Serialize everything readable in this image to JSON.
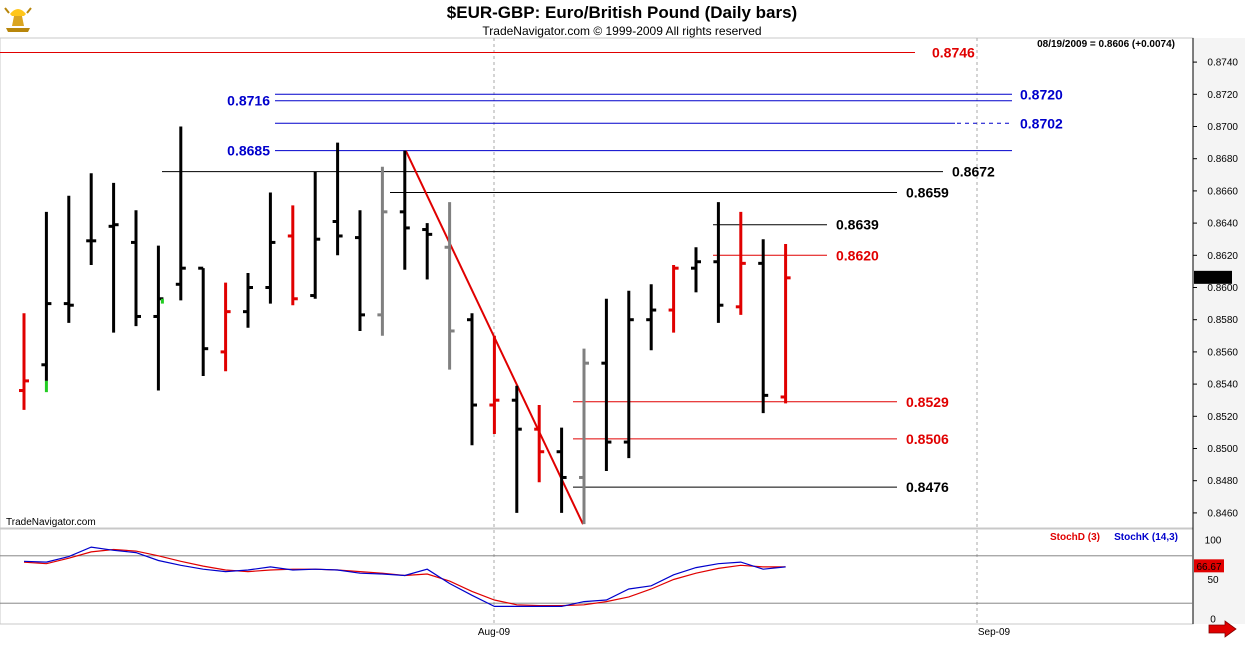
{
  "chart_title": "$EUR-GBP:  Euro/British Pound  (Daily bars)",
  "chart_subtitle": "TradeNavigator.com © 1999-2009 All rights reserved",
  "watermark": "TradeNavigator.com",
  "last_quote": "08/19/2009 = 0.8606 (+0.0074)",
  "last_price_tag": "0.8606",
  "stoch_value_tag": "66.67",
  "indicator_labels": {
    "stoch_d": "StochD (3)",
    "stoch_k": "StochK (14,3)"
  },
  "colors": {
    "up": "#000000",
    "down": "#e00000",
    "neutral": "#808080",
    "blue": "#0000cc",
    "red": "#e00000",
    "background": "#ffffff"
  },
  "logo": {
    "icon": "gold-bull-logo-icon"
  },
  "nav": {
    "next_arrow_icon": "red-right-arrow-icon"
  },
  "chart_data": [
    {
      "type": "ohlc",
      "title": "$EUR-GBP:  Euro/British Pound  (Daily bars)",
      "x_labels": [
        "Aug-09",
        "Sep-09"
      ],
      "y_ticks": [
        "0.8740",
        "0.8720",
        "0.8700",
        "0.8680",
        "0.8660",
        "0.8640",
        "0.8620",
        "0.8600",
        "0.8580",
        "0.8560",
        "0.8540",
        "0.8520",
        "0.8500",
        "0.8480",
        "0.8460"
      ],
      "ylim": [
        0.8447,
        0.8757
      ],
      "bars": [
        {
          "o": 0.8536,
          "h": 0.8584,
          "l": 0.8524,
          "c": 0.8542,
          "col": "down"
        },
        {
          "o": 0.8552,
          "h": 0.8647,
          "l": 0.8542,
          "c": 0.859,
          "col": "up"
        },
        {
          "o": 0.859,
          "h": 0.8657,
          "l": 0.8578,
          "c": 0.8589,
          "col": "up"
        },
        {
          "o": 0.8629,
          "h": 0.8671,
          "l": 0.8614,
          "c": 0.8629,
          "col": "up"
        },
        {
          "o": 0.8638,
          "h": 0.8665,
          "l": 0.8572,
          "c": 0.8639,
          "col": "up"
        },
        {
          "o": 0.8628,
          "h": 0.8648,
          "l": 0.8576,
          "c": 0.8582,
          "col": "up"
        },
        {
          "o": 0.8582,
          "h": 0.8626,
          "l": 0.8536,
          "c": 0.8593,
          "col": "up"
        },
        {
          "o": 0.8602,
          "h": 0.87,
          "l": 0.8592,
          "c": 0.8612,
          "col": "up"
        },
        {
          "o": 0.8612,
          "h": 0.8612,
          "l": 0.8545,
          "c": 0.8562,
          "col": "up"
        },
        {
          "o": 0.856,
          "h": 0.8603,
          "l": 0.8548,
          "c": 0.8585,
          "col": "down"
        },
        {
          "o": 0.8585,
          "h": 0.8609,
          "l": 0.8575,
          "c": 0.86,
          "col": "up"
        },
        {
          "o": 0.86,
          "h": 0.8659,
          "l": 0.859,
          "c": 0.8628,
          "col": "up"
        },
        {
          "o": 0.8632,
          "h": 0.8651,
          "l": 0.8589,
          "c": 0.8593,
          "col": "down"
        },
        {
          "o": 0.8595,
          "h": 0.8672,
          "l": 0.8593,
          "c": 0.863,
          "col": "up"
        },
        {
          "o": 0.8641,
          "h": 0.869,
          "l": 0.862,
          "c": 0.8632,
          "col": "up"
        },
        {
          "o": 0.8631,
          "h": 0.8648,
          "l": 0.8573,
          "c": 0.8583,
          "col": "up"
        },
        {
          "o": 0.8583,
          "h": 0.8675,
          "l": 0.857,
          "c": 0.8647,
          "col": "neutral"
        },
        {
          "o": 0.8647,
          "h": 0.8685,
          "l": 0.8611,
          "c": 0.8637,
          "col": "up"
        },
        {
          "o": 0.8636,
          "h": 0.864,
          "l": 0.8605,
          "c": 0.8633,
          "col": "up"
        },
        {
          "o": 0.8625,
          "h": 0.8653,
          "l": 0.8549,
          "c": 0.8573,
          "col": "neutral"
        },
        {
          "o": 0.858,
          "h": 0.8584,
          "l": 0.8502,
          "c": 0.8527,
          "col": "up"
        },
        {
          "o": 0.8527,
          "h": 0.857,
          "l": 0.8509,
          "c": 0.853,
          "col": "down"
        },
        {
          "o": 0.853,
          "h": 0.8539,
          "l": 0.846,
          "c": 0.8512,
          "col": "up"
        },
        {
          "o": 0.8512,
          "h": 0.8527,
          "l": 0.8479,
          "c": 0.8498,
          "col": "down"
        },
        {
          "o": 0.8498,
          "h": 0.8513,
          "l": 0.846,
          "c": 0.8482,
          "col": "up"
        },
        {
          "o": 0.8482,
          "h": 0.8562,
          "l": 0.8453,
          "c": 0.8553,
          "col": "neutral"
        },
        {
          "o": 0.8553,
          "h": 0.8593,
          "l": 0.8486,
          "c": 0.8504,
          "col": "up"
        },
        {
          "o": 0.8504,
          "h": 0.8598,
          "l": 0.8494,
          "c": 0.858,
          "col": "up"
        },
        {
          "o": 0.858,
          "h": 0.8602,
          "l": 0.8561,
          "c": 0.8586,
          "col": "up"
        },
        {
          "o": 0.8586,
          "h": 0.8614,
          "l": 0.8572,
          "c": 0.8612,
          "col": "down"
        },
        {
          "o": 0.8612,
          "h": 0.8625,
          "l": 0.8597,
          "c": 0.8616,
          "col": "up"
        },
        {
          "o": 0.8616,
          "h": 0.8653,
          "l": 0.8578,
          "c": 0.8589,
          "col": "up"
        },
        {
          "o": 0.8588,
          "h": 0.8647,
          "l": 0.8583,
          "c": 0.8615,
          "col": "down"
        },
        {
          "o": 0.8615,
          "h": 0.863,
          "l": 0.8522,
          "c": 0.8533,
          "col": "up"
        },
        {
          "o": 0.8532,
          "h": 0.8627,
          "l": 0.8528,
          "c": 0.8606,
          "col": "down"
        }
      ],
      "horizontal_levels": [
        {
          "value": 0.8746,
          "label": "0.8746",
          "color": "red",
          "label_side": "right"
        },
        {
          "value": 0.872,
          "label": "0.8720",
          "color": "blue",
          "label_side": "right"
        },
        {
          "value": 0.8716,
          "label": "0.8716",
          "color": "blue",
          "label_side": "left"
        },
        {
          "value": 0.8702,
          "label": "0.8702",
          "color": "blue",
          "label_side": "right"
        },
        {
          "value": 0.8685,
          "label": "0.8685",
          "color": "blue",
          "label_side": "left"
        },
        {
          "value": 0.8672,
          "label": "0.8672",
          "color": "black",
          "label_side": "right"
        },
        {
          "value": 0.8659,
          "label": "0.8659",
          "color": "black",
          "label_side": "right"
        },
        {
          "value": 0.8639,
          "label": "0.8639",
          "color": "black",
          "label_side": "right"
        },
        {
          "value": 0.862,
          "label": "0.8620",
          "color": "red",
          "label_side": "right"
        },
        {
          "value": 0.8529,
          "label": "0.8529",
          "color": "red",
          "label_side": "right"
        },
        {
          "value": 0.8506,
          "label": "0.8506",
          "color": "red",
          "label_side": "right"
        },
        {
          "value": 0.8476,
          "label": "0.8476",
          "color": "black",
          "label_side": "right"
        }
      ],
      "trendline": {
        "from_bar": 17,
        "from_value": 0.8685,
        "to_bar": 25,
        "to_value": 0.8453,
        "color": "red"
      }
    },
    {
      "type": "line",
      "title": "Stochastic",
      "y_ticks": [
        "100",
        "50",
        "0"
      ],
      "ylim": [
        0,
        100
      ],
      "reference_lines": [
        80,
        20
      ],
      "series": [
        {
          "name": "StochD (3)",
          "color": "red",
          "values": [
            72,
            70,
            77,
            85,
            88,
            86,
            80,
            73,
            67,
            62,
            60,
            62,
            63,
            63,
            62,
            60,
            58,
            55,
            57,
            48,
            35,
            24,
            18,
            17,
            17,
            18,
            22,
            28,
            38,
            50,
            58,
            64,
            68,
            66,
            66
          ]
        },
        {
          "name": "StochK (14,3)",
          "color": "blue",
          "values": [
            73,
            72,
            79,
            91,
            87,
            84,
            74,
            68,
            63,
            60,
            62,
            66,
            62,
            63,
            62,
            58,
            57,
            55,
            63,
            45,
            30,
            16,
            16,
            16,
            16,
            22,
            24,
            38,
            42,
            56,
            65,
            70,
            72,
            63,
            66
          ]
        }
      ]
    }
  ]
}
